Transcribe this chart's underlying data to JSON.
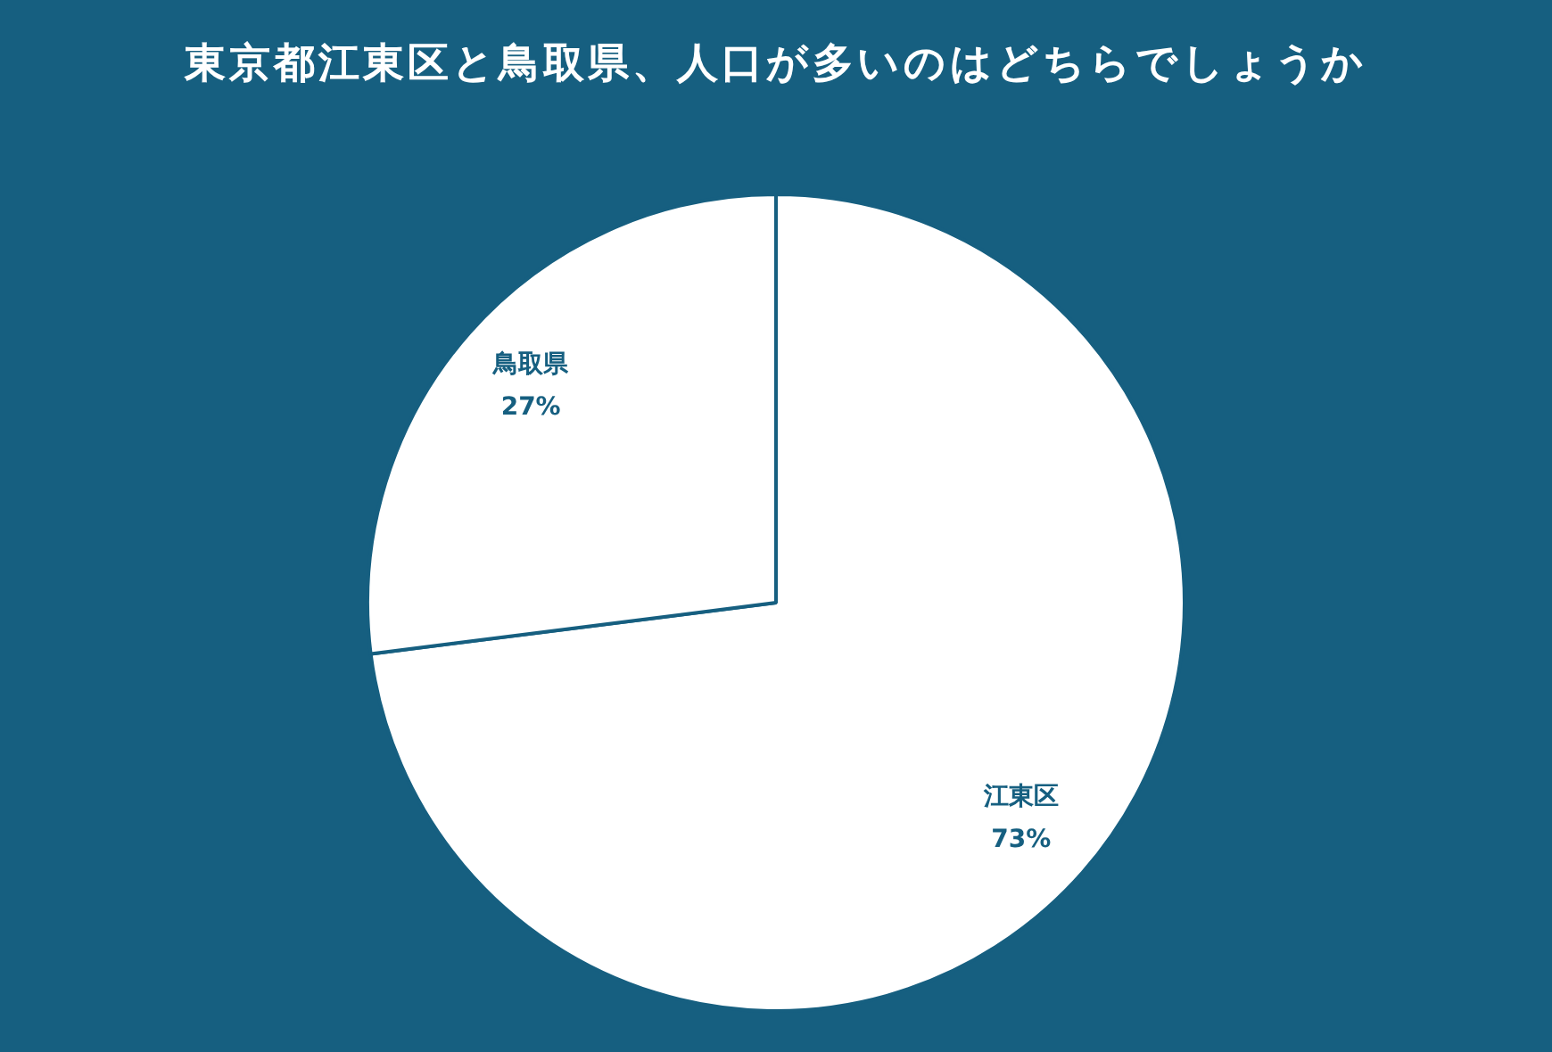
{
  "chart_data": {
    "type": "pie",
    "title": "東京都江東区と鳥取県、人口が多いのはどちらでしょうか",
    "categories": [
      "江東区",
      "鳥取県"
    ],
    "values": [
      73,
      27
    ],
    "colors": [
      "#ffffff",
      "#ffffff"
    ],
    "value_labels": [
      "73%",
      "27%"
    ],
    "legend": false
  }
}
